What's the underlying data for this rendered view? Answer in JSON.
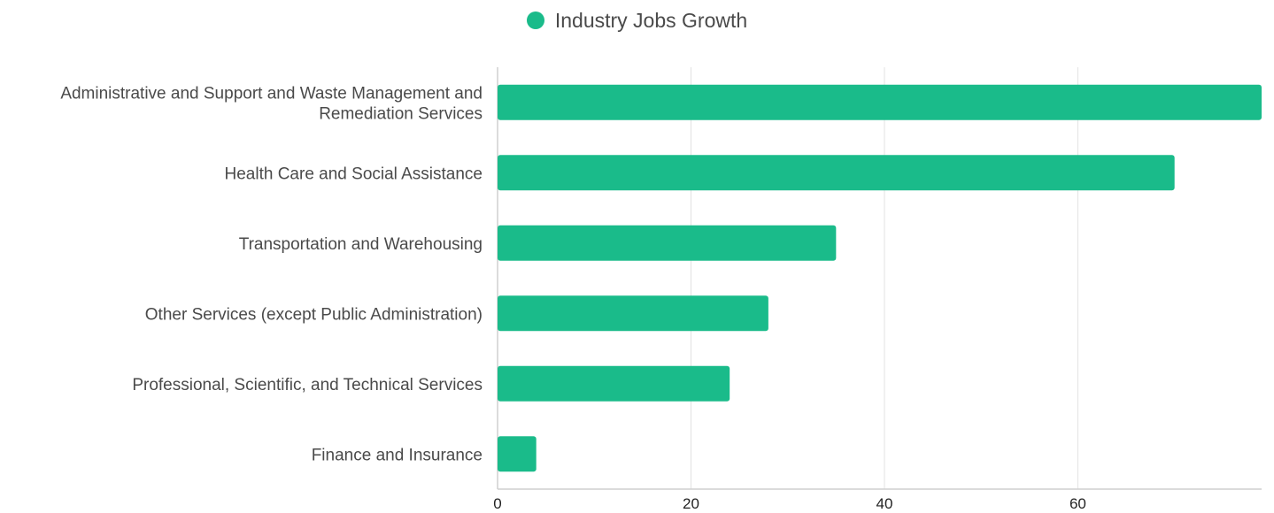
{
  "colors": {
    "bar": "#1abb8a",
    "grid": "#e2e2e2",
    "axis": "#cfcfcf",
    "label": "#4a4a4a"
  },
  "chart_data": {
    "type": "bar",
    "orientation": "horizontal",
    "categories": [
      "Administrative and Support and Waste Management and Remediation Services",
      "Health Care and Social Assistance",
      "Transportation and Warehousing",
      "Other Services (except Public Administration)",
      "Professional, Scientific, and Technical Services",
      "Finance and Insurance"
    ],
    "category_lines": [
      [
        "Administrative and Support and Waste Management and",
        "Remediation Services"
      ],
      [
        "Health Care and Social Assistance"
      ],
      [
        "Transportation and Warehousing"
      ],
      [
        "Other Services (except Public Administration)"
      ],
      [
        "Professional, Scientific, and Technical Services"
      ],
      [
        "Finance and Insurance"
      ]
    ],
    "series": [
      {
        "name": "Industry Jobs Growth",
        "values": [
          79,
          70,
          35,
          28,
          24,
          4
        ]
      }
    ],
    "xticks": [
      "0",
      "20",
      "40",
      "60"
    ],
    "xlim": [
      0,
      79
    ],
    "grid": true,
    "legend_position": "top-center"
  }
}
